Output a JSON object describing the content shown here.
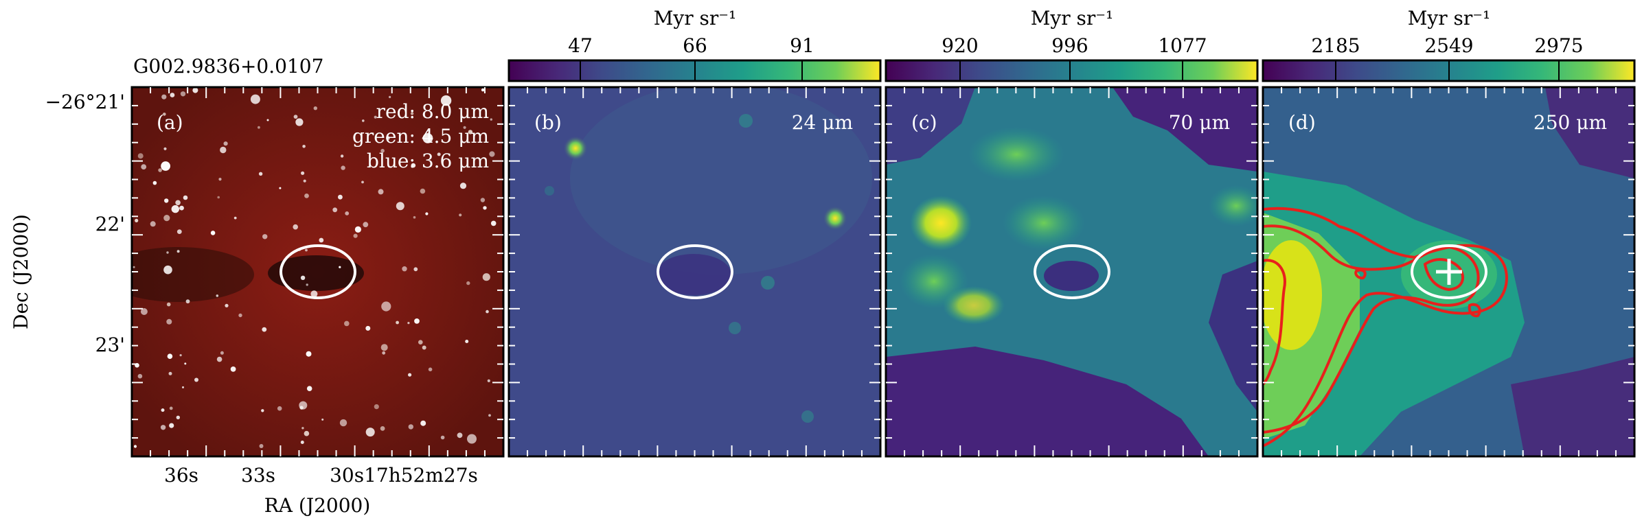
{
  "source_name": "G002.9836+0.0107",
  "axes": {
    "xlabel": "RA (J2000)",
    "ylabel": "Dec (J2000)",
    "x_ticks": [
      "36s",
      "33s",
      "30s17h52m27s"
    ],
    "y_ticks": [
      "−26°21'",
      "22'",
      "23'"
    ]
  },
  "panels": [
    {
      "tag": "(a)",
      "legend": [
        "red: 8.0 μm",
        "green: 4.5 μm",
        "blue: 3.6 μm"
      ]
    },
    {
      "tag": "(b)",
      "band": "24 μm"
    },
    {
      "tag": "(c)",
      "band": "70 μm"
    },
    {
      "tag": "(d)",
      "band": "250 μm"
    }
  ],
  "colorbars": [
    {
      "unit": "Myr sr⁻¹",
      "ticks": [
        "47",
        "66",
        "91"
      ]
    },
    {
      "unit": "Myr sr⁻¹",
      "ticks": [
        "920",
        "996",
        "1077"
      ]
    },
    {
      "unit": "Myr sr⁻¹",
      "ticks": [
        "2185",
        "2549",
        "2975"
      ]
    }
  ],
  "colors": {
    "ellipse": "#ffffff",
    "contours": "#e8201c",
    "rgb_background": "#7a1a12",
    "viridis_low": "#440154",
    "viridis_high": "#fde725"
  }
}
